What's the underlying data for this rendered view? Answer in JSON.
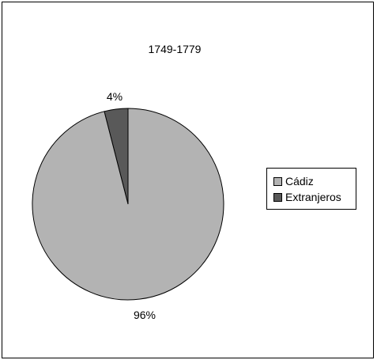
{
  "chart_data": {
    "type": "pie",
    "title": "1749-1779",
    "categories": [
      "Cádiz",
      "Extranjeros"
    ],
    "values": [
      96,
      4
    ],
    "data_labels": [
      "96%",
      "4%"
    ],
    "colors": [
      "#b3b3b3",
      "#595959"
    ],
    "legend": {
      "position": "right",
      "entries": [
        "Cádiz",
        "Extranjeros"
      ]
    }
  }
}
